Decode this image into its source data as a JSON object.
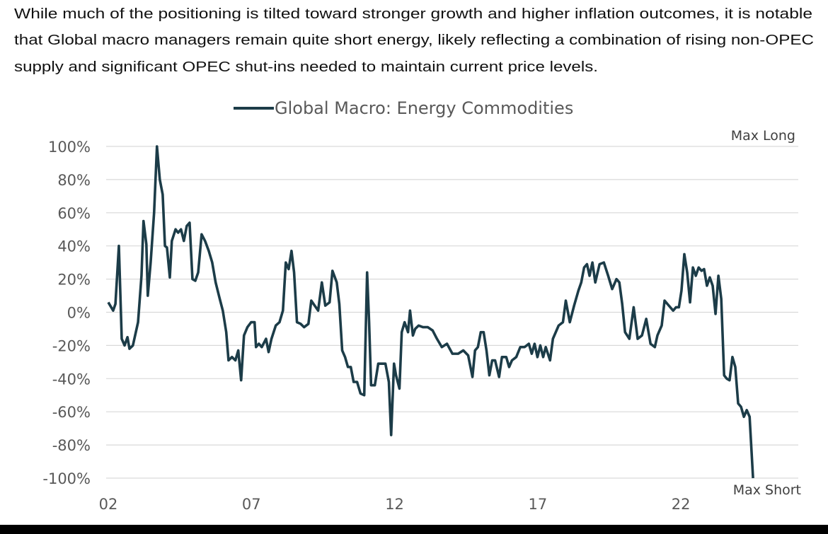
{
  "text": {
    "lines": [
      "While much of the positioning is tilted toward stronger growth and higher inflation outcomes, it is notable",
      "that Global macro managers remain quite short energy, likely reflecting a combination of rising non-OPEC",
      "supply and significant OPEC shut-ins needed to maintain current price levels."
    ]
  },
  "chart_data": {
    "type": "line",
    "series": [
      {
        "name": "Global Macro: Energy Commodities",
        "color": "#1c3c48",
        "x": [
          2002.0,
          2002.17,
          2002.25,
          2002.37,
          2002.47,
          2002.57,
          2002.67,
          2002.74,
          2002.86,
          2003.04,
          2003.16,
          2003.23,
          2003.33,
          2003.38,
          2003.48,
          2003.6,
          2003.7,
          2003.8,
          2003.9,
          2003.98,
          2004.05,
          2004.15,
          2004.22,
          2004.35,
          2004.44,
          2004.54,
          2004.64,
          2004.74,
          2004.84,
          2004.94,
          2005.04,
          2005.14,
          2005.26,
          2005.38,
          2005.51,
          2005.63,
          2005.75,
          2005.88,
          2006.0,
          2006.12,
          2006.2,
          2006.32,
          2006.44,
          2006.54,
          2006.64,
          2006.74,
          2006.86,
          2006.99,
          2007.11,
          2007.16,
          2007.26,
          2007.36,
          2007.51,
          2007.6,
          2007.7,
          2007.85,
          2007.98,
          2008.1,
          2008.2,
          2008.3,
          2008.4,
          2008.49,
          2008.59,
          2008.72,
          2008.84,
          2008.99,
          2009.09,
          2009.21,
          2009.33,
          2009.46,
          2009.58,
          2009.73,
          2009.83,
          2009.98,
          2010.07,
          2010.17,
          2010.27,
          2010.37,
          2010.47,
          2010.57,
          2010.69,
          2010.81,
          2010.94,
          2011.04,
          2011.11,
          2011.18,
          2011.31,
          2011.43,
          2011.56,
          2011.68,
          2011.8,
          2011.88,
          2011.98,
          2012.05,
          2012.17,
          2012.25,
          2012.35,
          2012.47,
          2012.54,
          2012.64,
          2012.72,
          2012.84,
          2012.99,
          2013.16,
          2013.33,
          2013.48,
          2013.65,
          2013.83,
          2014.02,
          2014.22,
          2014.4,
          2014.57,
          2014.72,
          2014.81,
          2014.91,
          2015.01,
          2015.11,
          2015.21,
          2015.31,
          2015.41,
          2015.51,
          2015.65,
          2015.75,
          2015.9,
          2016.0,
          2016.1,
          2016.25,
          2016.39,
          2016.54,
          2016.69,
          2016.79,
          2016.89,
          2016.99,
          2017.09,
          2017.19,
          2017.28,
          2017.43,
          2017.53,
          2017.63,
          2017.73,
          2017.88,
          2017.98,
          2018.12,
          2018.27,
          2018.42,
          2018.52,
          2018.62,
          2018.72,
          2018.81,
          2018.91,
          2019.01,
          2019.16,
          2019.31,
          2019.46,
          2019.6,
          2019.75,
          2019.85,
          2019.95,
          2020.05,
          2020.2,
          2020.35,
          2020.49,
          2020.64,
          2020.79,
          2020.94,
          2021.09,
          2021.18,
          2021.33,
          2021.43,
          2021.58,
          2021.73,
          2021.83,
          2021.93,
          2022.02,
          2022.12,
          2022.22,
          2022.32,
          2022.42,
          2022.52,
          2022.62,
          2022.72,
          2022.81,
          2022.91,
          2023.01,
          2023.11,
          2023.21,
          2023.31,
          2023.41,
          2023.51,
          2023.6,
          2023.7,
          2023.8,
          2023.9,
          2024.0,
          2024.1,
          2024.2,
          2024.3,
          2024.4,
          2024.52
        ],
        "values": [
          6,
          1,
          5,
          40,
          -16,
          -20,
          -15,
          -22,
          -20,
          -6,
          22,
          55,
          41,
          10,
          30,
          60,
          100,
          80,
          71,
          40,
          39,
          21,
          43,
          50,
          48,
          50,
          43,
          52,
          54,
          20,
          19,
          24,
          47,
          43,
          37,
          30,
          18,
          9,
          1,
          -12,
          -29,
          -27,
          -29,
          -23,
          -41,
          -14,
          -9,
          -6,
          -6,
          -21,
          -19,
          -21,
          -16,
          -24,
          -16,
          -8,
          -6,
          1,
          30,
          26,
          37,
          24,
          -6,
          -7,
          -9,
          -7,
          7,
          4,
          1,
          18,
          4,
          6,
          25,
          18,
          5,
          -23,
          -27,
          -33,
          -33,
          -42,
          -42,
          -49,
          -50,
          24,
          -6,
          -44,
          -44,
          -31,
          -31,
          -31,
          -42,
          -74,
          -31,
          -38,
          -46,
          -12,
          -6,
          -12,
          1,
          -14,
          -10,
          -8,
          -9,
          -9,
          -11,
          -16,
          -21,
          -19,
          -25,
          -25,
          -23,
          -26,
          -39,
          -23,
          -21,
          -12,
          -12,
          -23,
          -38,
          -29,
          -29,
          -39,
          -27,
          -27,
          -33,
          -29,
          -27,
          -21,
          -21,
          -19,
          -25,
          -19,
          -27,
          -20,
          -27,
          -21,
          -29,
          -16,
          -12,
          -8,
          -6,
          7,
          -6,
          4,
          13,
          18,
          27,
          29,
          22,
          30,
          18,
          29,
          30,
          22,
          14,
          20,
          18,
          5,
          -12,
          -16,
          3,
          -16,
          -14,
          -4,
          -19,
          -21,
          -14,
          -8,
          7,
          4,
          1,
          3,
          3,
          13,
          35,
          24,
          6,
          27,
          22,
          27,
          25,
          26,
          16,
          21,
          16,
          -1,
          22,
          8,
          -38,
          -40,
          -41,
          -27,
          -33,
          -55,
          -57,
          -63,
          -59,
          -63,
          -100
        ]
      }
    ],
    "xlim": [
      2002,
      2026.1
    ],
    "xticks": [
      {
        "value": 2002,
        "label": "02"
      },
      {
        "value": 2007,
        "label": "07"
      },
      {
        "value": 2012,
        "label": "12"
      },
      {
        "value": 2017,
        "label": "17"
      },
      {
        "value": 2022,
        "label": "22"
      }
    ],
    "ylim": [
      -100,
      100
    ],
    "yticks": [
      {
        "value": -100,
        "label": "-100%"
      },
      {
        "value": -80,
        "label": "-80%"
      },
      {
        "value": -60,
        "label": "-60%"
      },
      {
        "value": -40,
        "label": "-40%"
      },
      {
        "value": -20,
        "label": "-20%"
      },
      {
        "value": 0,
        "label": "0%"
      },
      {
        "value": 20,
        "label": "20%"
      },
      {
        "value": 40,
        "label": "40%"
      },
      {
        "value": 60,
        "label": "60%"
      },
      {
        "value": 80,
        "label": "80%"
      },
      {
        "value": 100,
        "label": "100%"
      }
    ],
    "annotations": [
      "Max Long",
      "Max Short"
    ],
    "grid": true,
    "legend": "top"
  }
}
